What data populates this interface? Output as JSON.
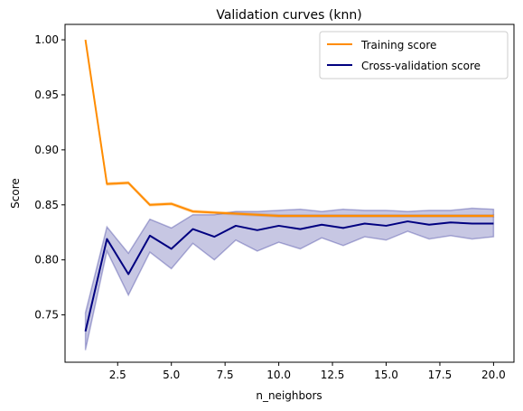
{
  "chart_data": {
    "type": "line",
    "title": "Validation curves (knn)",
    "xlabel": "n_neighbors",
    "ylabel": "Score",
    "xlim": [
      0.05,
      20.95
    ],
    "ylim": [
      0.707,
      1.014
    ],
    "xticks": [
      2.5,
      5.0,
      7.5,
      10.0,
      12.5,
      15.0,
      17.5,
      20.0
    ],
    "xtick_labels": [
      "2.5",
      "5.0",
      "7.5",
      "10.0",
      "12.5",
      "15.0",
      "17.5",
      "20.0"
    ],
    "yticks": [
      0.75,
      0.8,
      0.85,
      0.9,
      0.95,
      1.0
    ],
    "ytick_labels": [
      "0.75",
      "0.80",
      "0.85",
      "0.90",
      "0.95",
      "1.00"
    ],
    "legend_position": "top-right",
    "grid": false,
    "x": [
      1,
      2,
      3,
      4,
      5,
      6,
      7,
      8,
      9,
      10,
      11,
      12,
      13,
      14,
      15,
      16,
      17,
      18,
      19,
      20
    ],
    "series": [
      {
        "name": "Training score",
        "color": "#ff8c00",
        "values": [
          1.0,
          0.869,
          0.87,
          0.85,
          0.851,
          0.844,
          0.843,
          0.842,
          0.841,
          0.84,
          0.84,
          0.84,
          0.84,
          0.84,
          0.84,
          0.84,
          0.84,
          0.84,
          0.84,
          0.84
        ],
        "band_lower": [
          1.0,
          0.868,
          0.869,
          0.849,
          0.85,
          0.843,
          0.842,
          0.841,
          0.84,
          0.839,
          0.839,
          0.839,
          0.839,
          0.839,
          0.839,
          0.839,
          0.839,
          0.839,
          0.839,
          0.839
        ],
        "band_upper": [
          1.0,
          0.87,
          0.871,
          0.851,
          0.852,
          0.845,
          0.844,
          0.843,
          0.842,
          0.841,
          0.841,
          0.841,
          0.841,
          0.841,
          0.841,
          0.841,
          0.841,
          0.841,
          0.841,
          0.841
        ]
      },
      {
        "name": "Cross-validation score",
        "color": "#000080",
        "values": [
          0.735,
          0.819,
          0.787,
          0.822,
          0.81,
          0.828,
          0.821,
          0.831,
          0.827,
          0.831,
          0.828,
          0.832,
          0.829,
          0.833,
          0.831,
          0.835,
          0.832,
          0.834,
          0.833,
          0.833
        ],
        "band_lower": [
          0.718,
          0.808,
          0.768,
          0.807,
          0.792,
          0.815,
          0.8,
          0.818,
          0.808,
          0.816,
          0.81,
          0.82,
          0.813,
          0.821,
          0.818,
          0.826,
          0.819,
          0.822,
          0.819,
          0.821
        ],
        "band_upper": [
          0.752,
          0.83,
          0.806,
          0.837,
          0.829,
          0.841,
          0.841,
          0.844,
          0.844,
          0.845,
          0.846,
          0.844,
          0.846,
          0.845,
          0.845,
          0.844,
          0.845,
          0.845,
          0.847,
          0.846
        ]
      }
    ]
  }
}
